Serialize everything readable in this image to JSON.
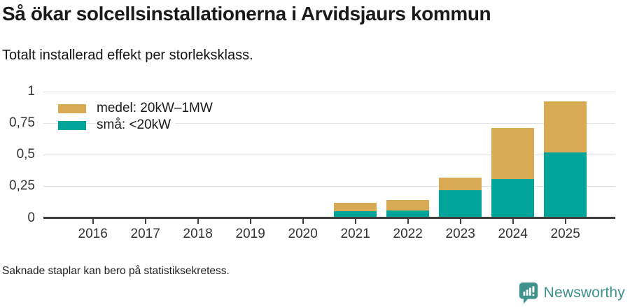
{
  "header": {
    "title": "Så ökar solcellsinstallationerna i Arvidsjaurs kommun",
    "subtitle": "Totalt installerad effekt per storleksklass."
  },
  "chart_data": {
    "type": "bar",
    "stacked": true,
    "title": "Så ökar solcellsinstallationerna i Arvidsjaurs kommun",
    "subtitle": "Totalt installerad effekt per storleksklass.",
    "xlabel": "",
    "ylabel": "",
    "ylim": [
      0,
      1
    ],
    "grid": true,
    "legend_position": "top-left",
    "categories": [
      "2016",
      "2017",
      "2018",
      "2019",
      "2020",
      "2021",
      "2022",
      "2023",
      "2024",
      "2025"
    ],
    "series": [
      {
        "id": "sma",
        "name": "små: <20kW",
        "color": "#00a499",
        "values": [
          null,
          null,
          null,
          null,
          null,
          0.05,
          0.06,
          0.22,
          0.31,
          0.52
        ]
      },
      {
        "id": "medel",
        "name": "medel: 20kW–1MW",
        "color": "#d8aa54",
        "values": [
          null,
          null,
          null,
          null,
          null,
          0.07,
          0.08,
          0.1,
          0.4,
          0.4
        ]
      }
    ],
    "missing_categories": [
      "2016",
      "2017",
      "2018",
      "2019",
      "2020"
    ],
    "yticks": [
      {
        "value": 0,
        "label": "0"
      },
      {
        "value": 0.25,
        "label": "0,25"
      },
      {
        "value": 0.5,
        "label": "0,5"
      },
      {
        "value": 0.75,
        "label": "0,75"
      },
      {
        "value": 1,
        "label": "1"
      }
    ]
  },
  "legend": {
    "items": [
      {
        "label": "medel: 20kW–1MW",
        "color": "#d8aa54"
      },
      {
        "label": "små: <20kW",
        "color": "#00a499"
      }
    ]
  },
  "footer": {
    "note": "Saknade staplar kan bero på statistiksekretess.",
    "brand": "Newsworthy"
  },
  "colors": {
    "medel": "#d8aa54",
    "sma": "#00a499",
    "brand_teal": "#3f928b",
    "axis": "#3d3d3d",
    "gridline": "#e2e2e2"
  }
}
